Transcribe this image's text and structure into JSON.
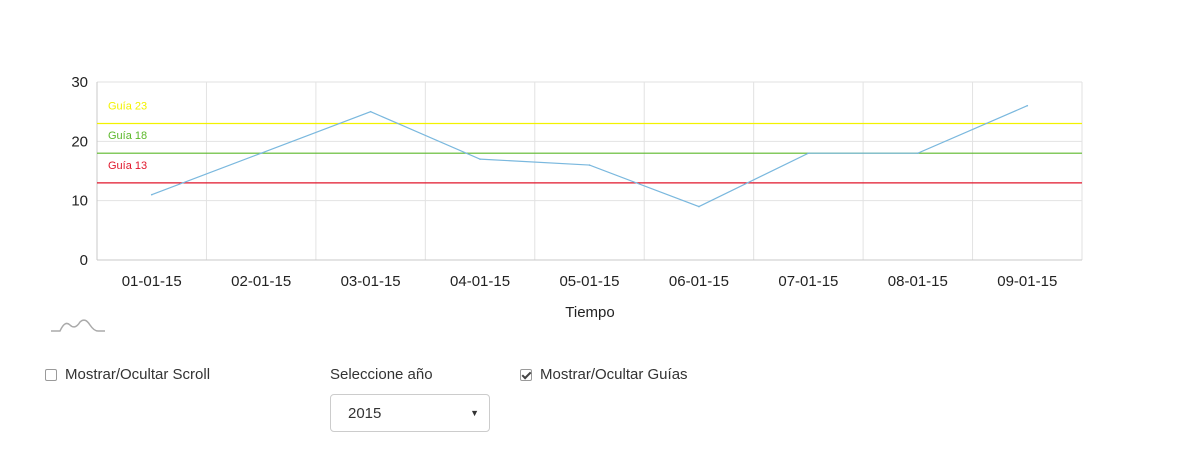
{
  "chart_data": {
    "type": "line",
    "title": "",
    "xlabel": "Tiempo",
    "ylabel": "",
    "categories": [
      "01-01-15",
      "02-01-15",
      "03-01-15",
      "04-01-15",
      "05-01-15",
      "06-01-15",
      "07-01-15",
      "08-01-15",
      "09-01-15"
    ],
    "series": [
      {
        "values": [
          11,
          18,
          25,
          17,
          16,
          9,
          18,
          18,
          26
        ],
        "color": "#7ab8de"
      }
    ],
    "ylim": [
      0,
      30
    ],
    "yticks": [
      "0",
      "10",
      "20",
      "30"
    ],
    "grid": true,
    "guides": [
      {
        "label": "Guía 23",
        "value": 23,
        "color": "#f2f200"
      },
      {
        "label": "Guía 18",
        "value": 18,
        "color": "#5cb82a"
      },
      {
        "label": "Guía 13",
        "value": 13,
        "color": "#e0162b"
      }
    ]
  },
  "controls": {
    "scroll_toggle": {
      "label": "Mostrar/Ocultar Scroll",
      "checked": false
    },
    "year_select": {
      "label": "Seleccione año",
      "value": "2015"
    },
    "guides_toggle": {
      "label": "Mostrar/Ocultar Guías",
      "checked": true
    },
    "scroll_icon": "sparkline-icon"
  }
}
